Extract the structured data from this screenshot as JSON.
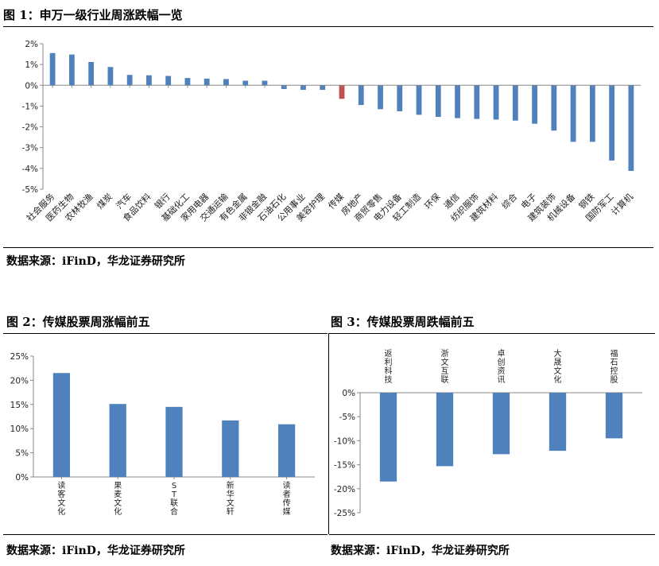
{
  "fig1": {
    "title": "图 1：申万一级行业周涨跌幅一览",
    "source": "数据来源：iFinD，华龙证券研究所",
    "chart_data": {
      "type": "bar",
      "categories": [
        "社会服务",
        "医药生物",
        "农林牧渔",
        "煤炭",
        "汽车",
        "食品饮料",
        "银行",
        "基础化工",
        "家用电器",
        "交通运输",
        "有色金属",
        "非银金融",
        "石油石化",
        "公用事业",
        "美容护理",
        "传媒",
        "房地产",
        "商贸零售",
        "电力设备",
        "轻工制造",
        "环保",
        "通信",
        "纺织服饰",
        "建筑材料",
        "综合",
        "电子",
        "建筑装饰",
        "机械设备",
        "钢铁",
        "国防军工",
        "计算机"
      ],
      "values": [
        1.55,
        1.48,
        1.12,
        0.88,
        0.5,
        0.48,
        0.45,
        0.35,
        0.32,
        0.3,
        0.22,
        0.22,
        -0.18,
        -0.22,
        -0.22,
        -0.65,
        -0.95,
        -1.15,
        -1.25,
        -1.42,
        -1.52,
        -1.58,
        -1.62,
        -1.65,
        -1.7,
        -1.85,
        -2.18,
        -2.72,
        -2.72,
        -3.62,
        -4.12
      ],
      "highlight_index": 15,
      "ylim": [
        -5,
        2
      ],
      "yticks": [
        "2%",
        "1%",
        "0%",
        "-1%",
        "-2%",
        "-3%",
        "-4%",
        "-5%"
      ],
      "color": "#4f81bd",
      "highlight_color": "#c0504d"
    }
  },
  "fig2": {
    "title": "图 2：传媒股票周涨幅前五",
    "source": "数据来源：iFinD，华龙证券研究所",
    "chart_data": {
      "type": "bar",
      "categories": [
        "读客文化",
        "果麦文化",
        "ST联合",
        "新华文轩",
        "读者传媒"
      ],
      "values": [
        21.5,
        15.1,
        14.5,
        11.7,
        10.9
      ],
      "ylim": [
        0,
        25
      ],
      "yticks": [
        "25%",
        "20%",
        "15%",
        "10%",
        "5%",
        "0%"
      ],
      "color": "#4f81bd"
    }
  },
  "fig3": {
    "title": "图 3：传媒股票周跌幅前五",
    "source": "数据来源：iFinD，华龙证券研究所",
    "chart_data": {
      "type": "bar",
      "categories": [
        "返利科技",
        "浙文互联",
        "卓创资讯",
        "大晟文化",
        "福石控股"
      ],
      "values": [
        -18.5,
        -15.3,
        -12.8,
        -12.1,
        -9.5
      ],
      "ylim": [
        -25,
        0
      ],
      "yticks": [
        "0%",
        "-5%",
        "-10%",
        "-15%",
        "-20%",
        "-25%"
      ],
      "color": "#4f81bd"
    }
  }
}
